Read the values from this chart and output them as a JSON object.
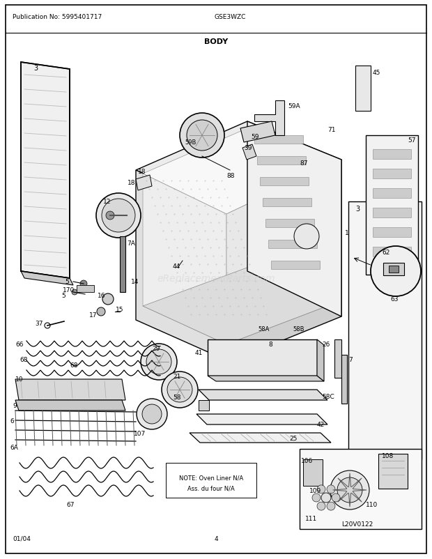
{
  "title": "BODY",
  "pub_no": "Publication No: 5995401717",
  "model": "GSE3WZC",
  "date": "01/04",
  "page": "4",
  "watermark": "eReplacementParts.com",
  "diagram_id": "L20V0122",
  "note_text": "NOTE: Oven Liner N/A\nAss. du four N/A",
  "bg_color": "#ffffff",
  "fig_w": 6.2,
  "fig_h": 8.03,
  "dpi": 100
}
